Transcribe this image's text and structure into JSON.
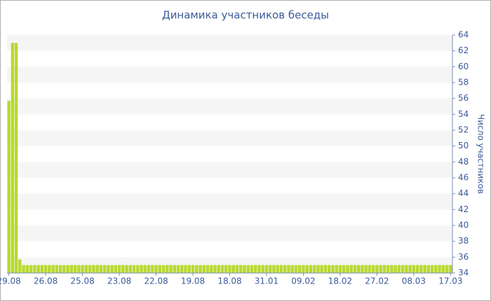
{
  "chart_data": {
    "type": "bar",
    "title": "Динамика участников беседы",
    "y_label": "Число участников",
    "categories": [
      "29.08",
      null,
      null,
      null,
      null,
      null,
      null,
      null,
      null,
      null,
      "26.08",
      null,
      null,
      null,
      null,
      null,
      null,
      null,
      null,
      null,
      "25.08",
      null,
      null,
      null,
      null,
      null,
      null,
      null,
      null,
      null,
      "23.08",
      null,
      null,
      null,
      null,
      null,
      null,
      null,
      null,
      null,
      "22.08",
      null,
      null,
      null,
      null,
      null,
      null,
      null,
      null,
      null,
      "19.08",
      null,
      null,
      null,
      null,
      null,
      null,
      null,
      null,
      null,
      "18.08",
      null,
      null,
      null,
      null,
      null,
      null,
      null,
      null,
      null,
      "31.01",
      null,
      null,
      null,
      null,
      null,
      null,
      null,
      null,
      null,
      "09.02",
      null,
      null,
      null,
      null,
      null,
      null,
      null,
      null,
      null,
      "18.02",
      null,
      null,
      null,
      null,
      null,
      null,
      null,
      null,
      null,
      "27.02",
      null,
      null,
      null,
      null,
      null,
      null,
      null,
      null,
      null,
      "08.03",
      null,
      null,
      null,
      null,
      null,
      null,
      null,
      null,
      null,
      "17.03"
    ],
    "values": [
      55.7,
      63,
      63,
      35.7,
      35,
      35,
      35,
      35,
      35,
      35,
      35,
      35,
      35,
      35,
      35,
      35,
      35,
      35,
      35,
      35,
      35,
      35,
      35,
      35,
      35,
      35,
      35,
      35,
      35,
      35,
      35,
      35,
      35,
      35,
      35,
      35,
      35,
      35,
      35,
      35,
      35,
      35,
      35,
      35,
      35,
      35,
      35,
      35,
      35,
      35,
      35,
      35,
      35,
      35,
      35,
      35,
      35,
      35,
      35,
      35,
      35,
      35,
      35,
      35,
      35,
      35,
      35,
      35,
      35,
      35,
      35,
      35,
      35,
      35,
      35,
      35,
      35,
      35,
      35,
      35,
      35,
      35,
      35,
      35,
      35,
      35,
      35,
      35,
      35,
      35,
      35,
      35,
      35,
      35,
      35,
      35,
      35,
      35,
      35,
      35,
      35,
      35,
      35,
      35,
      35,
      35,
      35,
      35,
      35,
      35,
      35,
      35,
      35,
      35,
      35,
      35,
      35,
      35,
      35,
      35,
      35
    ],
    "color": "#b8d92e",
    "ylim": [
      34,
      64
    ],
    "yticks": [
      34,
      36,
      38,
      40,
      42,
      44,
      46,
      48,
      50,
      52,
      54,
      56,
      58,
      60,
      62,
      64
    ],
    "grid": true
  }
}
